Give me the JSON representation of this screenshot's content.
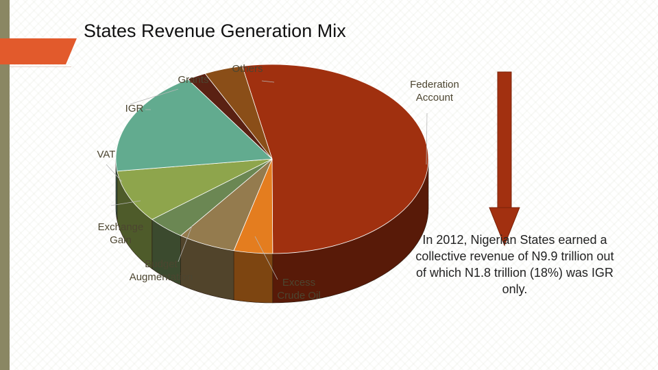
{
  "slide": {
    "title": "States Revenue Generation Mix",
    "note": "In 2012, Nigerian States earned a collective revenue of N9.9 trillion out of which N1.8 trillion (18%) was IGR only.",
    "colors": {
      "strip": "#8a8763",
      "tab": "#e25a2c",
      "arrow": "#a23010"
    }
  },
  "chart_data": {
    "type": "pie",
    "title": "States Revenue Generation Mix",
    "unit": "percent of total revenue",
    "slices": [
      {
        "label": "Federation Account",
        "value": 53,
        "color": "#a0300f"
      },
      {
        "label": "Excess Crude Oil",
        "value": 4,
        "color": "#e47d1f"
      },
      {
        "label": "Budget Augmentation",
        "value": 6,
        "color": "#947b4e"
      },
      {
        "label": "Exchange Gain",
        "value": 4,
        "color": "#6b8753"
      },
      {
        "label": "VAT",
        "value": 9,
        "color": "#8ea54c"
      },
      {
        "label": "IGR",
        "value": 18,
        "color": "#62ab8f"
      },
      {
        "label": "Grants",
        "value": 2,
        "color": "#5a2113"
      },
      {
        "label": "Others",
        "value": 4,
        "color": "#8a4e18"
      }
    ]
  }
}
